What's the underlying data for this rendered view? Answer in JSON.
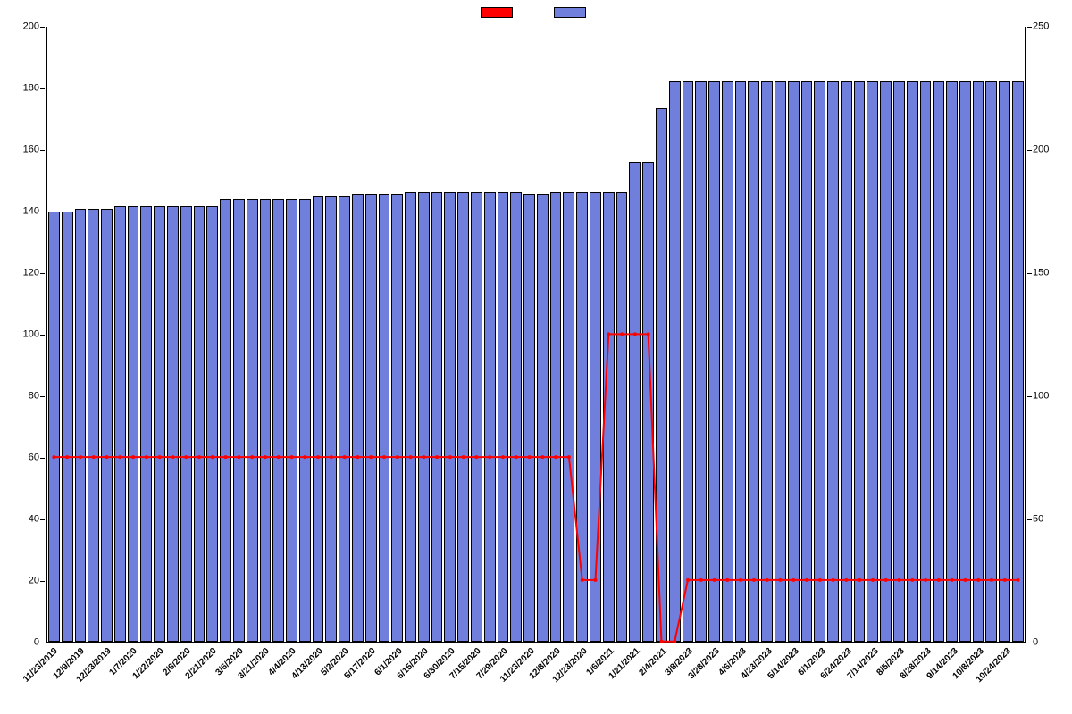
{
  "chart": {
    "type": "bar+line",
    "background_color": "#ffffff",
    "bar_color": "#6f7fdb",
    "bar_border_color": "#000000",
    "line_color": "#ff0000",
    "line_width": 2,
    "marker_style": "circle",
    "marker_size": 4,
    "marker_color": "#ff0000",
    "axis_color": "#000000",
    "tick_label_fontsize": 11,
    "x_label_fontsize": 10,
    "x_label_rotation_deg": -45,
    "y_left": {
      "min": 0,
      "max": 200,
      "step": 20
    },
    "y_right": {
      "min": 0,
      "max": 250,
      "step": 50
    },
    "legend": {
      "series1": {
        "color": "#ff0000",
        "label": ""
      },
      "series2": {
        "color": "#6f7fdb",
        "label": ""
      }
    },
    "categories": [
      "11/23/2019",
      "12/9/2019",
      "12/23/2019",
      "1/7/2020",
      "1/22/2020",
      "2/6/2020",
      "2/21/2020",
      "3/6/2020",
      "3/21/2020",
      "4/4/2020",
      "4/13/2020",
      "5/2/2020",
      "5/17/2020",
      "6/1/2020",
      "6/15/2020",
      "6/30/2020",
      "7/15/2020",
      "7/29/2020",
      "11/23/2020",
      "12/8/2020",
      "12/23/2020",
      "1/6/2021",
      "1/21/2021",
      "2/4/2021",
      "3/8/2023",
      "3/28/2023",
      "4/6/2023",
      "4/23/2023",
      "5/14/2023",
      "6/1/2023",
      "6/24/2023",
      "7/14/2023",
      "8/5/2023",
      "8/28/2023",
      "9/14/2023",
      "10/8/2023",
      "10/24/2023"
    ],
    "bar_values_right_axis": [
      175,
      175,
      176,
      176,
      176,
      177,
      177,
      177,
      177,
      177,
      177,
      177,
      177,
      180,
      180,
      180,
      180,
      180,
      180,
      180,
      181,
      181,
      181,
      182,
      182,
      182,
      182,
      183,
      183,
      183,
      183,
      183,
      183,
      183,
      183,
      183,
      182,
      182,
      183,
      183,
      183,
      183,
      183,
      183,
      195,
      195,
      217,
      228,
      228,
      228,
      228,
      228,
      228,
      228,
      228,
      228,
      228,
      228,
      228,
      228,
      228,
      228,
      228,
      228,
      228,
      228,
      228,
      228,
      228,
      228,
      228,
      228,
      228,
      228
    ],
    "line_values_left_axis": [
      60,
      60,
      60,
      60,
      60,
      60,
      60,
      60,
      60,
      60,
      60,
      60,
      60,
      60,
      60,
      60,
      60,
      60,
      60,
      60,
      60,
      60,
      60,
      60,
      60,
      60,
      60,
      60,
      60,
      60,
      60,
      60,
      60,
      60,
      60,
      60,
      60,
      60,
      60,
      60,
      20,
      20,
      100,
      100,
      100,
      100,
      0,
      0,
      20,
      20,
      20,
      20,
      20,
      20,
      20,
      20,
      20,
      20,
      20,
      20,
      20,
      20,
      20,
      20,
      20,
      20,
      20,
      20,
      20,
      20,
      20,
      20,
      20,
      20
    ]
  }
}
